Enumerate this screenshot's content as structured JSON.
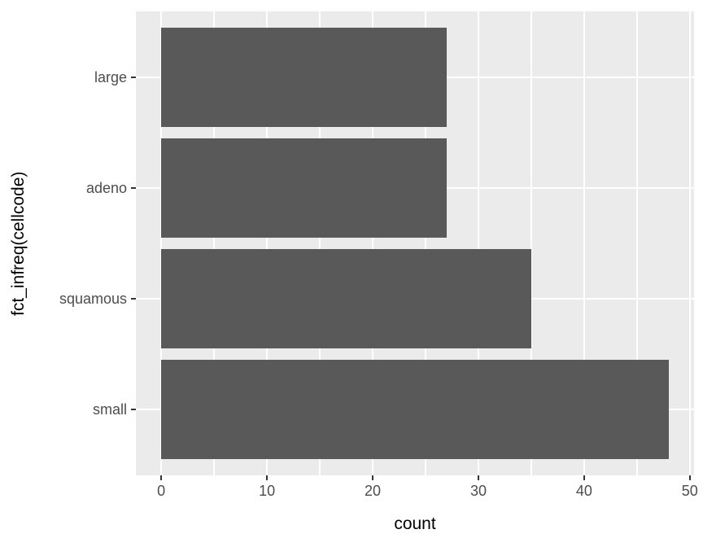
{
  "chart_data": {
    "type": "bar",
    "orientation": "horizontal",
    "categories": [
      "large",
      "adeno",
      "squamous",
      "small"
    ],
    "values": [
      27,
      27,
      35,
      48
    ],
    "xlabel": "count",
    "ylabel": "fct_infreq(cellcode)",
    "x_ticks": [
      0,
      10,
      20,
      30,
      40,
      50
    ],
    "x_minor_ticks": [
      5,
      15,
      25,
      35,
      45
    ],
    "xlim": [
      -2.4,
      50.4
    ],
    "grid": true,
    "legend": false,
    "bar_width_fraction": 0.9,
    "colors": {
      "bar_fill": "#595959",
      "panel_background": "#EBEBEB",
      "grid_major": "#FFFFFF",
      "grid_minor": "#FFFFFF",
      "axis_text": "#4D4D4D",
      "axis_title": "#000000",
      "tick_mark": "#333333",
      "figure_background": "#FFFFFF"
    }
  }
}
